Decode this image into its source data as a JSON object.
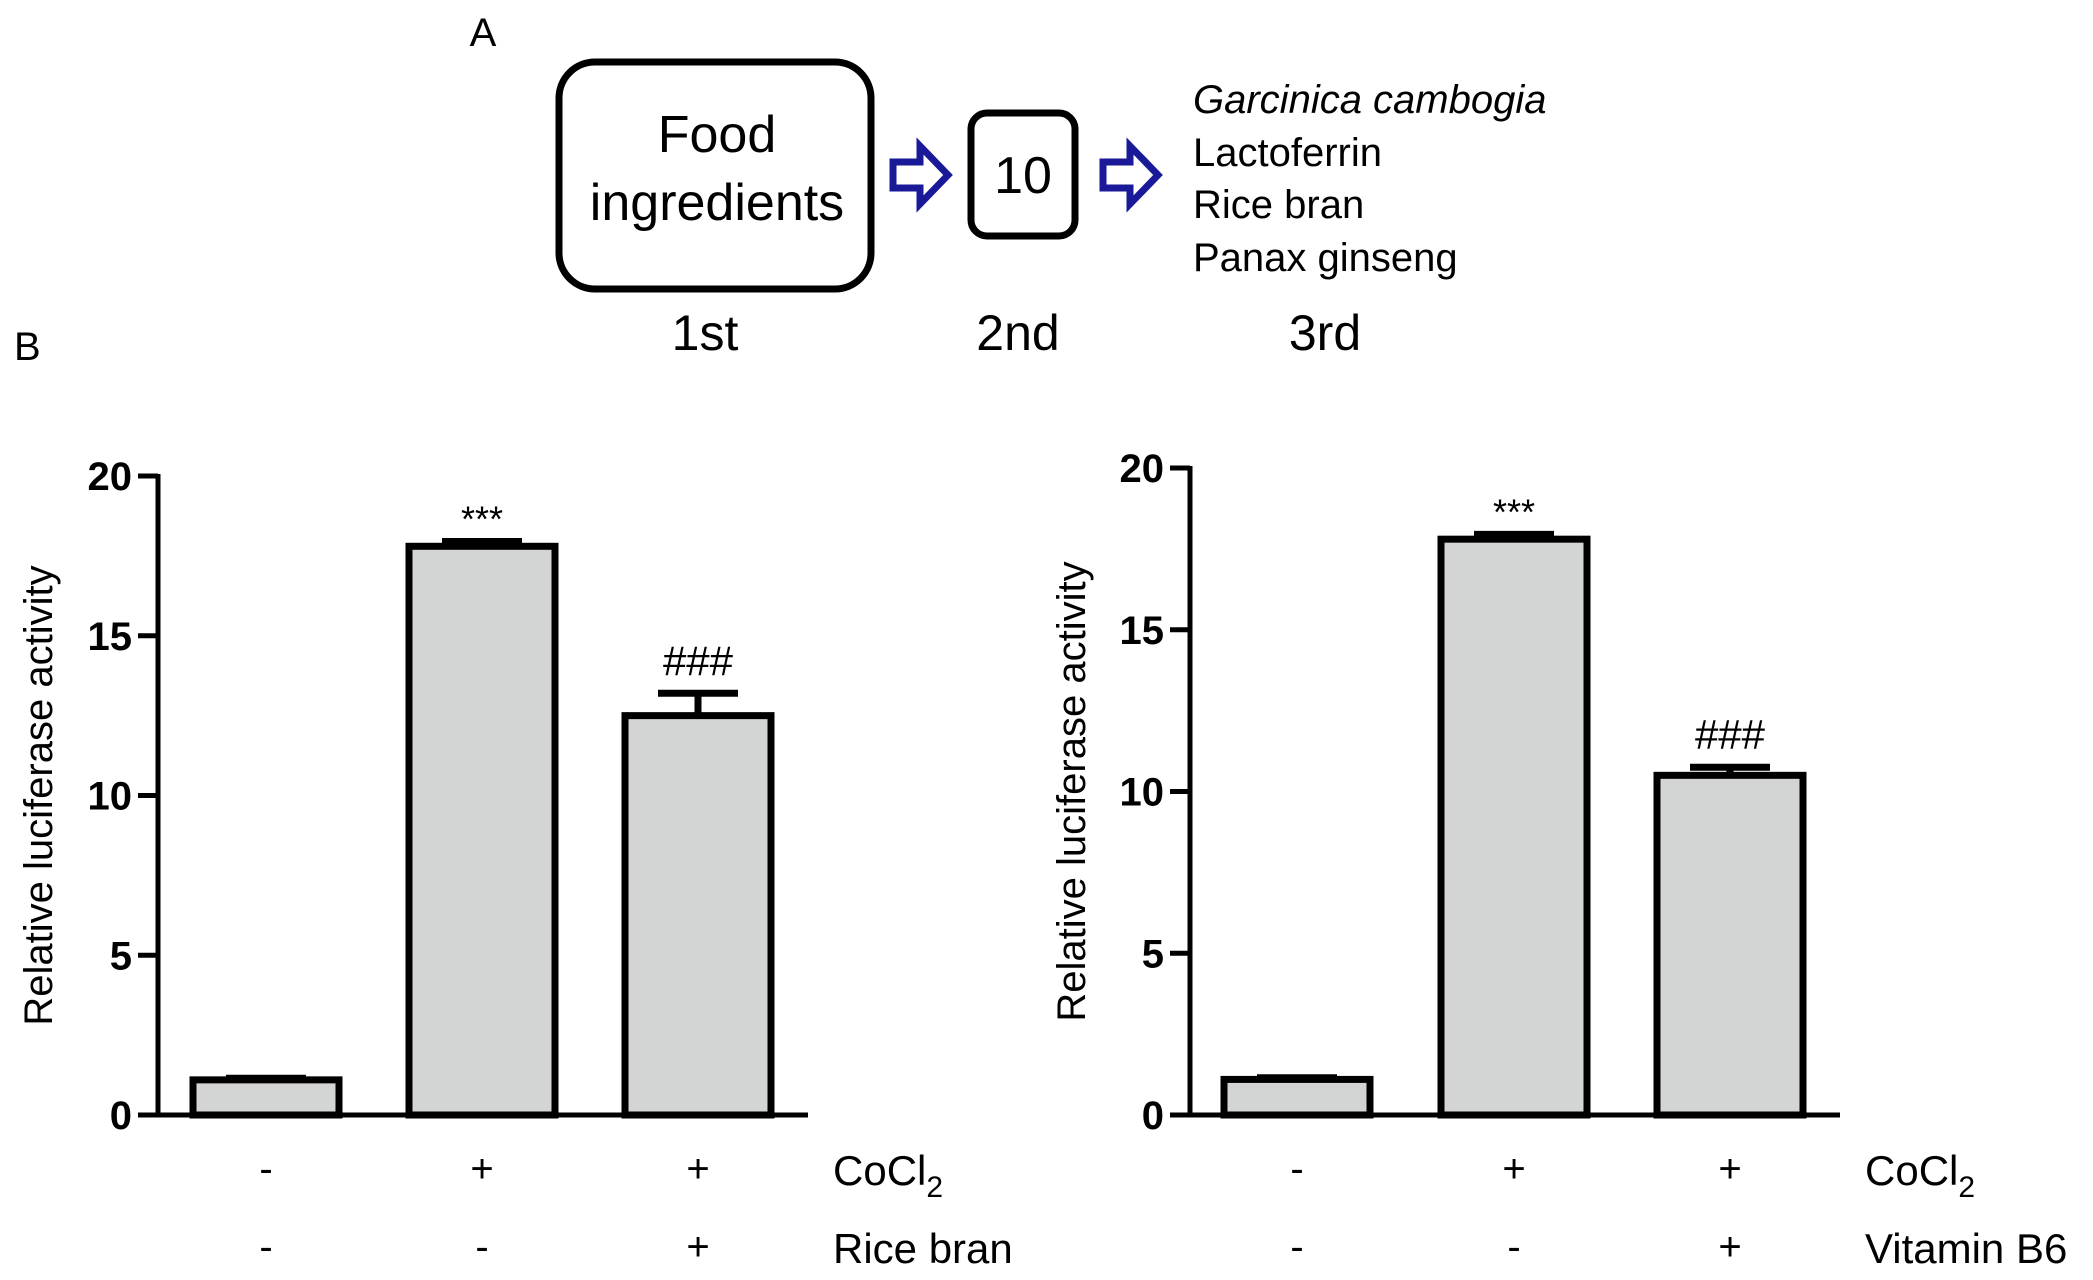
{
  "panel_a": {
    "label": "A",
    "box1_line1": "Food",
    "box1_line2": "ingredients",
    "box2_text": "10",
    "final_items": [
      "Garcinica cambogia",
      "Lactoferrin",
      "Rice bran",
      "Panax ginseng"
    ],
    "stages": [
      "1st",
      "2nd",
      "3rd"
    ],
    "arrow_color": "#1a1a99"
  },
  "panel_b": {
    "label": "B"
  },
  "chart_data": [
    {
      "type": "bar",
      "ylabel": "Relative luciferase activity",
      "ylim": [
        0,
        20
      ],
      "yticks": [
        "0",
        "5",
        "10",
        "15",
        "20"
      ],
      "bar_color": "#d3d5d4",
      "values": [
        1.1,
        17.8,
        12.5
      ],
      "errors": [
        0.05,
        0.15,
        0.7
      ],
      "significance": [
        "",
        "***",
        "###"
      ],
      "conditions": [
        {
          "label": "CoCl",
          "subscript": "2",
          "marks": [
            "-",
            "+",
            "+"
          ]
        },
        {
          "label": "Rice bran",
          "subscript": "",
          "marks": [
            "-",
            "-",
            "+"
          ]
        }
      ]
    },
    {
      "type": "bar",
      "ylabel": "Relative luciferase activity",
      "ylim": [
        0,
        20
      ],
      "yticks": [
        "0",
        "5",
        "10",
        "15",
        "20"
      ],
      "bar_color": "#d3d5d4",
      "values": [
        1.1,
        17.8,
        10.5
      ],
      "errors": [
        0.05,
        0.15,
        0.25
      ],
      "significance": [
        "",
        "***",
        "###"
      ],
      "conditions": [
        {
          "label": "CoCl",
          "subscript": "2",
          "marks": [
            "-",
            "+",
            "+"
          ]
        },
        {
          "label": "Vitamin B6",
          "subscript": "",
          "marks": [
            "-",
            "-",
            "+"
          ]
        }
      ]
    }
  ]
}
